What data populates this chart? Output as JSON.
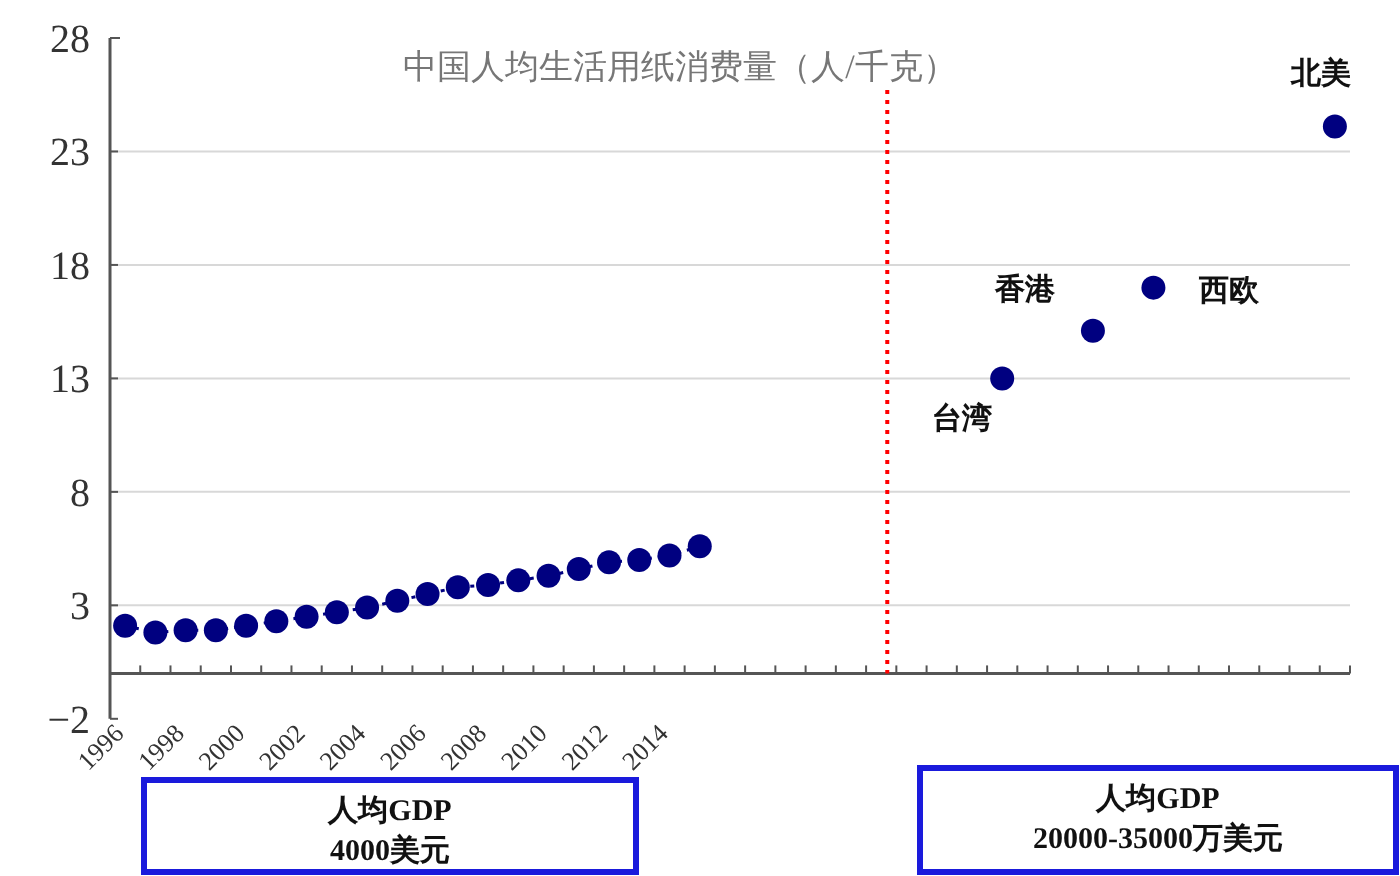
{
  "chart_data": {
    "type": "scatter",
    "title": "中国人均生活用纸消费量（人/千克）",
    "categories": [
      "1996",
      null,
      "1998",
      null,
      "2000",
      null,
      "2002",
      null,
      "2004",
      null,
      "2006",
      null,
      "2008",
      null,
      "2010",
      null,
      "2012",
      null,
      "2014",
      null,
      null,
      null,
      null,
      null,
      null,
      null,
      null,
      null,
      null,
      null,
      null,
      null,
      null,
      null,
      null,
      null,
      null,
      null,
      null,
      null,
      null
    ],
    "series": [
      {
        "type": "line",
        "line_style": "dotted",
        "marker": "circle",
        "color": "#000080",
        "values": [
          2.1,
          1.8,
          1.9,
          1.9,
          2.1,
          2.3,
          2.5,
          2.7,
          2.9,
          3.2,
          3.5,
          3.8,
          3.9,
          4.1,
          4.3,
          4.6,
          4.9,
          5.0,
          5.2,
          5.6,
          null,
          null,
          null,
          null,
          null,
          null,
          null,
          null,
          null,
          null,
          null,
          null,
          null,
          null,
          null,
          null,
          null,
          null,
          null,
          null,
          null
        ]
      },
      {
        "name": "台湾",
        "color": "#000080",
        "values": [
          null,
          null,
          null,
          null,
          null,
          null,
          null,
          null,
          null,
          null,
          null,
          null,
          null,
          null,
          null,
          null,
          null,
          null,
          null,
          null,
          null,
          null,
          null,
          null,
          null,
          null,
          null,
          null,
          null,
          13.0,
          null,
          null,
          null,
          null,
          null,
          null,
          null,
          null,
          null,
          null,
          null
        ]
      },
      {
        "name": "香港",
        "color": "#000080",
        "values": [
          null,
          null,
          null,
          null,
          null,
          null,
          null,
          null,
          null,
          null,
          null,
          null,
          null,
          null,
          null,
          null,
          null,
          null,
          null,
          null,
          null,
          null,
          null,
          null,
          null,
          null,
          null,
          null,
          null,
          null,
          null,
          null,
          15.1,
          null,
          null,
          null,
          null,
          null,
          null,
          null,
          null
        ]
      },
      {
        "name": "西欧",
        "color": "#000080",
        "values": [
          null,
          null,
          null,
          null,
          null,
          null,
          null,
          null,
          null,
          null,
          null,
          null,
          null,
          null,
          null,
          null,
          null,
          null,
          null,
          null,
          null,
          null,
          null,
          null,
          null,
          null,
          null,
          null,
          null,
          null,
          null,
          null,
          null,
          null,
          17.0,
          null,
          null,
          null,
          null,
          null,
          null
        ]
      },
      {
        "name": "北美",
        "color": "#000080",
        "values": [
          null,
          null,
          null,
          null,
          null,
          null,
          null,
          null,
          null,
          null,
          null,
          null,
          null,
          null,
          null,
          null,
          null,
          null,
          null,
          null,
          null,
          null,
          null,
          null,
          null,
          null,
          null,
          null,
          null,
          null,
          null,
          null,
          null,
          null,
          null,
          null,
          null,
          null,
          null,
          null,
          24.1
        ]
      }
    ],
    "marker": "circle",
    "ylim": [
      -2,
      28
    ],
    "yticks": [
      -2,
      3,
      8,
      13,
      18,
      23,
      28
    ],
    "grid": "y",
    "legend": false,
    "annotations": [
      "人均GDP\n4000美元",
      "人均GDP\n20000-35000万美元"
    ]
  }
}
